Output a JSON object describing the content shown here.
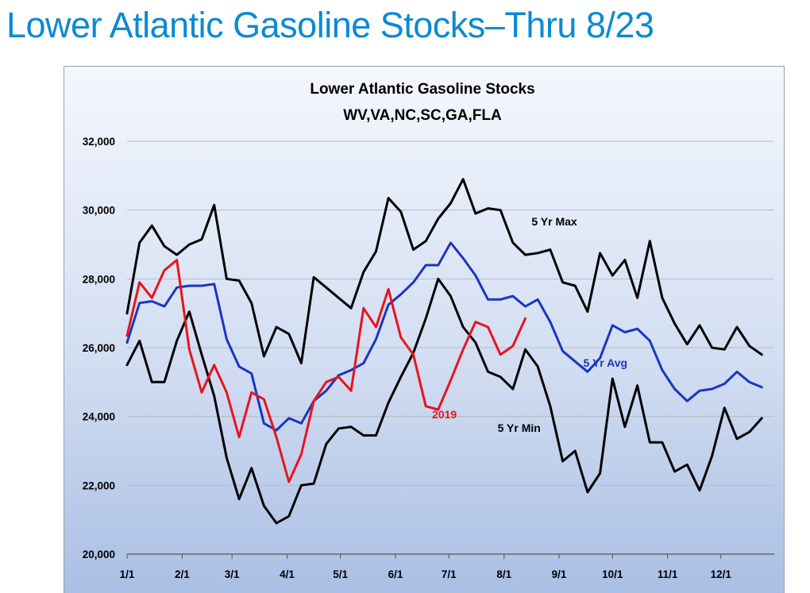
{
  "slide": {
    "title": "Lower Atlantic Gasoline Stocks–Thru 8/23"
  },
  "chart_data": {
    "type": "line",
    "title": "Lower Atlantic Gasoline Stocks",
    "subtitle": "WV,VA,NC,SC,GA,FLA",
    "xlabel": "",
    "ylabel": "",
    "ylim": [
      20000,
      32000
    ],
    "yticks": [
      20000,
      22000,
      24000,
      26000,
      28000,
      30000,
      32000
    ],
    "ytick_labels": [
      "20,000",
      "22,000",
      "24,000",
      "26,000",
      "28,000",
      "30,000",
      "32,000"
    ],
    "xticks": [
      {
        "label": "1/1",
        "week": 0
      },
      {
        "label": "2/1",
        "week": 4.43
      },
      {
        "label": "3/1",
        "week": 8.43
      },
      {
        "label": "4/1",
        "week": 12.86
      },
      {
        "label": "5/1",
        "week": 17.14
      },
      {
        "label": "6/1",
        "week": 21.57
      },
      {
        "label": "7/1",
        "week": 25.86
      },
      {
        "label": "8/1",
        "week": 30.29
      },
      {
        "label": "9/1",
        "week": 34.71
      },
      {
        "label": "10/1",
        "week": 39
      },
      {
        "label": "11/1",
        "week": 43.43
      },
      {
        "label": "12/1",
        "week": 47.71
      }
    ],
    "x_axis_max_week": 52,
    "grid": "horizontal",
    "series": [
      {
        "name": "5 Yr Max",
        "color": "#000000",
        "width": 3,
        "values": [
          27000,
          29050,
          29550,
          28950,
          28700,
          29000,
          29150,
          30150,
          28000,
          27950,
          27300,
          25750,
          26600,
          26400,
          25550,
          28050,
          27750,
          27450,
          27150,
          28200,
          28800,
          30350,
          29950,
          28850,
          29100,
          29750,
          30200,
          30900,
          29900,
          30050,
          30000,
          29050,
          28700,
          28750,
          28850,
          27900,
          27800,
          27050,
          28750,
          28100,
          28550,
          27450,
          29100,
          27450,
          26700,
          26100,
          26650,
          26000,
          25950,
          26600,
          26050,
          25800
        ]
      },
      {
        "name": "5 Yr Avg",
        "color": "#1b35c0",
        "width": 3,
        "values": [
          26150,
          27300,
          27350,
          27200,
          27750,
          27800,
          27800,
          27850,
          26250,
          25450,
          25250,
          23800,
          23600,
          23950,
          23800,
          24450,
          24750,
          25200,
          25350,
          25550,
          26250,
          27250,
          27550,
          27900,
          28400,
          28400,
          29050,
          28600,
          28100,
          27400,
          27400,
          27500,
          27200,
          27400,
          26750,
          25900,
          25600,
          25300,
          25700,
          26650,
          26450,
          26550,
          26200,
          25350,
          24800,
          24450,
          24750,
          24800,
          24950,
          25300,
          25000,
          24850
        ]
      },
      {
        "name": "5 Yr Min",
        "color": "#000000",
        "width": 3,
        "values": [
          25500,
          26200,
          25000,
          25000,
          26200,
          27050,
          25800,
          24600,
          22800,
          21600,
          22500,
          21400,
          20900,
          21100,
          22000,
          22050,
          23200,
          23650,
          23700,
          23450,
          23450,
          24400,
          25150,
          25850,
          26850,
          28000,
          27500,
          26600,
          26150,
          25300,
          25150,
          24800,
          25950,
          25450,
          24300,
          22700,
          23000,
          21800,
          22350,
          25100,
          23700,
          24900,
          23250,
          23250,
          22400,
          22600,
          21850,
          22850,
          24250,
          23350,
          23550,
          23950
        ]
      },
      {
        "name": "2019",
        "color": "#e8141c",
        "width": 3,
        "values": [
          26350,
          27900,
          27450,
          28250,
          28550,
          25950,
          24700,
          25500,
          24700,
          23400,
          24700,
          24500,
          23400,
          22100,
          22900,
          24450,
          25000,
          25150,
          24750,
          27150,
          26600,
          27700,
          26300,
          25800,
          24300,
          24200,
          25050,
          25950,
          26750,
          26600,
          25800,
          26050,
          26850
        ]
      }
    ],
    "annotations": [
      {
        "text": "5 Yr Max",
        "series": "5 Yr Max"
      },
      {
        "text": "5 Yr Avg",
        "series": "5 Yr Avg"
      },
      {
        "text": "2019",
        "series": "2019"
      },
      {
        "text": "5 Yr Min",
        "series": "5 Yr Min"
      }
    ]
  }
}
